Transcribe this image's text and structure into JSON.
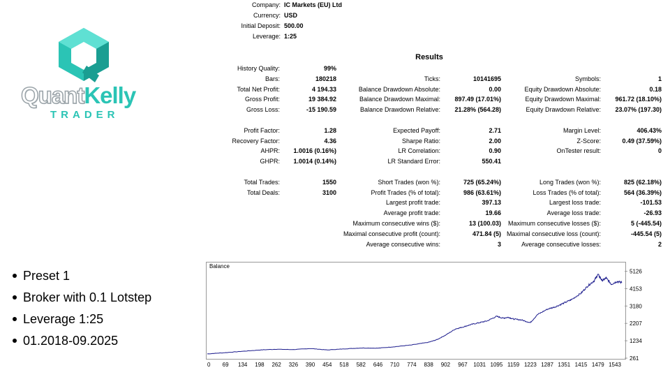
{
  "logo": {
    "word_part1": "Quant",
    "word_part2": "Kelly",
    "subtitle": "TRADER",
    "accent": "#2bc4b5"
  },
  "header": {
    "rows": [
      {
        "label": "Company:",
        "value": "IC Markets (EU) Ltd"
      },
      {
        "label": "Currency:",
        "value": "USD"
      },
      {
        "label": "Initial Deposit:",
        "value": "500.00"
      },
      {
        "label": "Leverage:",
        "value": "1:25"
      }
    ]
  },
  "results": {
    "title": "Results",
    "col1": [
      {
        "label": "History Quality:",
        "value": "99%"
      },
      {
        "label": "Bars:",
        "value": "180218"
      },
      {
        "label": "Total Net Profit:",
        "value": "4 194.33"
      },
      {
        "label": "Gross Profit:",
        "value": "19 384.92"
      },
      {
        "label": "Gross Loss:",
        "value": "-15 190.59"
      },
      {
        "label": "",
        "value": ""
      },
      {
        "label": "Profit Factor:",
        "value": "1.28"
      },
      {
        "label": "Recovery Factor:",
        "value": "4.36"
      },
      {
        "label": "AHPR:",
        "value": "1.0016 (0.16%)"
      },
      {
        "label": "GHPR:",
        "value": "1.0014 (0.14%)"
      },
      {
        "label": "",
        "value": ""
      },
      {
        "label": "Total Trades:",
        "value": "1550"
      },
      {
        "label": "Total Deals:",
        "value": "3100"
      }
    ],
    "col2": [
      {
        "label": "",
        "value": ""
      },
      {
        "label": "Ticks:",
        "value": "10141695"
      },
      {
        "label": "Balance Drawdown Absolute:",
        "value": "0.00"
      },
      {
        "label": "Balance Drawdown Maximal:",
        "value": "897.49 (17.01%)"
      },
      {
        "label": "Balance Drawdown Relative:",
        "value": "21.28% (564.28)"
      },
      {
        "label": "",
        "value": ""
      },
      {
        "label": "Expected Payoff:",
        "value": "2.71"
      },
      {
        "label": "Sharpe Ratio:",
        "value": "2.00"
      },
      {
        "label": "LR Correlation:",
        "value": "0.90"
      },
      {
        "label": "LR Standard Error:",
        "value": "550.41"
      },
      {
        "label": "",
        "value": ""
      },
      {
        "label": "Short Trades (won %):",
        "value": "725 (65.24%)"
      },
      {
        "label": "Profit Trades (% of total):",
        "value": "986 (63.61%)"
      },
      {
        "label": "Largest profit trade:",
        "value": "397.13"
      },
      {
        "label": "Average profit trade:",
        "value": "19.66"
      },
      {
        "label": "Maximum consecutive wins ($):",
        "value": "13 (100.03)"
      },
      {
        "label": "Maximal consecutive profit (count):",
        "value": "471.84 (5)"
      },
      {
        "label": "Average consecutive wins:",
        "value": "3"
      }
    ],
    "col3": [
      {
        "label": "",
        "value": ""
      },
      {
        "label": "Symbols:",
        "value": "1"
      },
      {
        "label": "Equity Drawdown Absolute:",
        "value": "0.18"
      },
      {
        "label": "Equity Drawdown Maximal:",
        "value": "961.72 (18.10%)"
      },
      {
        "label": "Equity Drawdown Relative:",
        "value": "23.07% (197.30)"
      },
      {
        "label": "",
        "value": ""
      },
      {
        "label": "Margin Level:",
        "value": "406.43%"
      },
      {
        "label": "Z-Score:",
        "value": "0.49 (37.59%)"
      },
      {
        "label": "OnTester result:",
        "value": "0"
      },
      {
        "label": "",
        "value": ""
      },
      {
        "label": "",
        "value": ""
      },
      {
        "label": "Long Trades (won %):",
        "value": "825 (62.18%)"
      },
      {
        "label": "Loss Trades (% of total):",
        "value": "564 (36.39%)"
      },
      {
        "label": "Largest loss trade:",
        "value": "-101.53"
      },
      {
        "label": "Average loss trade:",
        "value": "-26.93"
      },
      {
        "label": "Maximum consecutive losses ($):",
        "value": "5 (-445.54)"
      },
      {
        "label": "Maximal consecutive loss (count):",
        "value": "-445.54 (5)"
      },
      {
        "label": "Average consecutive losses:",
        "value": "2"
      }
    ]
  },
  "bullets": [
    "Preset 1",
    "Broker with 0.1 Lotstep",
    "Leverage 1:25",
    "01.2018-09.2025"
  ],
  "chart_data": {
    "type": "line",
    "title": "Balance",
    "color": "#1a1a8c",
    "xlim": [
      0,
      1580
    ],
    "ylim": [
      261,
      5500
    ],
    "x_ticks": [
      "0",
      "69",
      "134",
      "198",
      "262",
      "326",
      "390",
      "454",
      "518",
      "582",
      "646",
      "710",
      "774",
      "838",
      "902",
      "967",
      "1031",
      "1095",
      "1159",
      "1223",
      "1287",
      "1351",
      "1415",
      "1479",
      "1543"
    ],
    "y_ticks": [
      "5126",
      "4153",
      "3180",
      "2207",
      "1234",
      "261"
    ],
    "series": [
      {
        "name": "Balance",
        "x": [
          0,
          60,
          130,
          200,
          262,
          326,
          390,
          454,
          518,
          582,
          646,
          710,
          774,
          838,
          870,
          902,
          940,
          967,
          1000,
          1031,
          1060,
          1095,
          1120,
          1140,
          1160,
          1190,
          1223,
          1250,
          1287,
          1320,
          1351,
          1380,
          1415,
          1440,
          1465,
          1479,
          1495,
          1510,
          1530,
          1550,
          1570
        ],
        "y": [
          500,
          560,
          640,
          720,
          760,
          740,
          800,
          720,
          780,
          830,
          820,
          900,
          1000,
          1150,
          1300,
          1550,
          1900,
          2000,
          2150,
          2250,
          2350,
          2600,
          2500,
          2550,
          2450,
          2400,
          2250,
          2700,
          3000,
          3150,
          3350,
          3550,
          3900,
          4300,
          4600,
          4950,
          4600,
          4750,
          4400,
          4550,
          4500
        ]
      }
    ]
  }
}
